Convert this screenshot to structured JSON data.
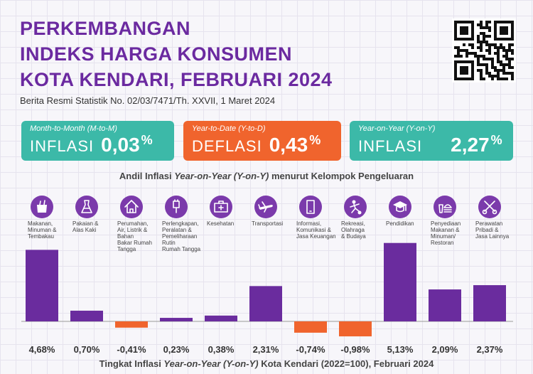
{
  "header": {
    "title_lines": [
      "PERKEMBANGAN",
      "INDEKS HARGA KONSUMEN",
      "KOTA KENDARI, FEBRUARI 2024"
    ],
    "subtitle": "Berita Resmi Statistik No. 02/03/7471/Th. XXVII, 1 Maret 2024"
  },
  "qr_code": "qr-code-icon",
  "cards": {
    "mtm": {
      "period": "Month-to-Month (M-to-M)",
      "kind": "INFLASI",
      "value": "0,03",
      "unit": "%",
      "color": "#3cb9a8"
    },
    "ytd": {
      "period": "Year-to-Date (Y-to-D)",
      "kind": "DEFLASI",
      "value": "0,43",
      "unit": "%",
      "color": "#f0642d"
    },
    "yoy": {
      "period": "Year-on-Year (Y-on-Y)",
      "kind": "INFLASI",
      "value": "2,27",
      "unit": "%",
      "color": "#3cb9a8"
    }
  },
  "chart_titles": {
    "top_prefix": "Andil Inflasi ",
    "top_italic": "Year-on-Year (Y-on-Y)",
    "top_suffix": " menurut Kelompok Pengeluaran",
    "bottom_prefix": "Tingkat Inflasi ",
    "bottom_italic": "Year-on-Year (Y-on-Y)",
    "bottom_suffix": " Kota Kendari (2022=100), Februari 2024"
  },
  "chart_data": {
    "type": "bar",
    "title": "Tingkat Inflasi Year-on-Year (Y-on-Y) Kota Kendari (2022=100), Februari 2024",
    "categories": [
      [
        "Makanan,",
        "Minuman &",
        "Tembakau"
      ],
      [
        "Pakaian &",
        "Alas Kaki"
      ],
      [
        "Perumahan,",
        "Air, Listrik &",
        "Bahan",
        "Bakar Rumah",
        "Tangga"
      ],
      [
        "Perlengkapan,",
        "Peralatan &",
        "Pemeliharaan",
        "Rutin",
        "Rumah Tangga"
      ],
      [
        "Kesehatan"
      ],
      [
        "Transportasi"
      ],
      [
        "Informasi,",
        "Komunikasi &",
        "Jasa Keuangan"
      ],
      [
        "Rekreasi,",
        "Olahraga",
        "& Budaya"
      ],
      [
        "Pendidikan"
      ],
      [
        "Penyediaan",
        "Makanan &",
        "Minuman/",
        "Restoran"
      ],
      [
        "Perawatan",
        "Pribadi &",
        "Jasa Lainnya"
      ]
    ],
    "icons": [
      "grocery-bag-icon",
      "dress-icon",
      "house-icon",
      "appliance-plug-icon",
      "first-aid-kit-icon",
      "airplane-icon",
      "smartphone-icon",
      "soccer-player-icon",
      "graduation-cap-icon",
      "fast-food-icon",
      "scissors-comb-icon"
    ],
    "values": [
      4.68,
      0.7,
      -0.41,
      0.23,
      0.38,
      2.31,
      -0.74,
      -0.98,
      5.13,
      2.09,
      2.37
    ],
    "value_labels": [
      "4,68%",
      "0,70%",
      "-0,41%",
      "0,23%",
      "0,38%",
      "2,31%",
      "-0,74%",
      "-0,98%",
      "5,13%",
      "2,09%",
      "2,37%"
    ],
    "colors": {
      "positive": "#6a2c9e",
      "negative": "#f0642d",
      "icon_bg": "#7b3aab"
    },
    "ylim": [
      -1.5,
      5.5
    ]
  }
}
